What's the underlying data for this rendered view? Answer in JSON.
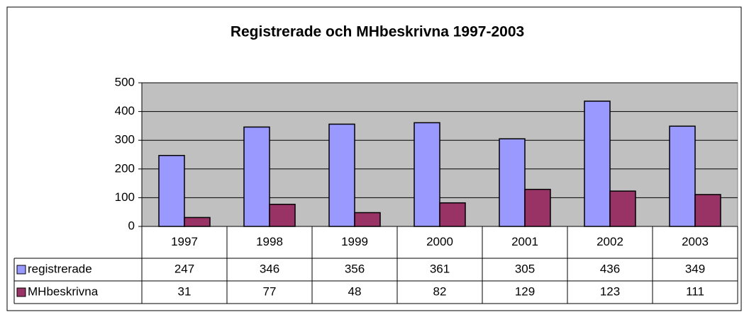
{
  "chart_data": {
    "type": "bar",
    "title": "Registrerade och MHbeskrivna  1997-2003",
    "categories": [
      "1997",
      "1998",
      "1999",
      "2000",
      "2001",
      "2002",
      "2003"
    ],
    "series": [
      {
        "name": "registrerade",
        "color": "#9999ff",
        "values": [
          247,
          346,
          356,
          361,
          305,
          436,
          349
        ]
      },
      {
        "name": "MHbeskrivna",
        "color": "#993366",
        "values": [
          31,
          77,
          48,
          82,
          129,
          123,
          111
        ]
      }
    ],
    "ylim": [
      0,
      500
    ],
    "yticks": [
      0,
      100,
      200,
      300,
      400,
      500
    ],
    "grid": true,
    "plot_background": "#c0c0c0",
    "data_table": true
  }
}
